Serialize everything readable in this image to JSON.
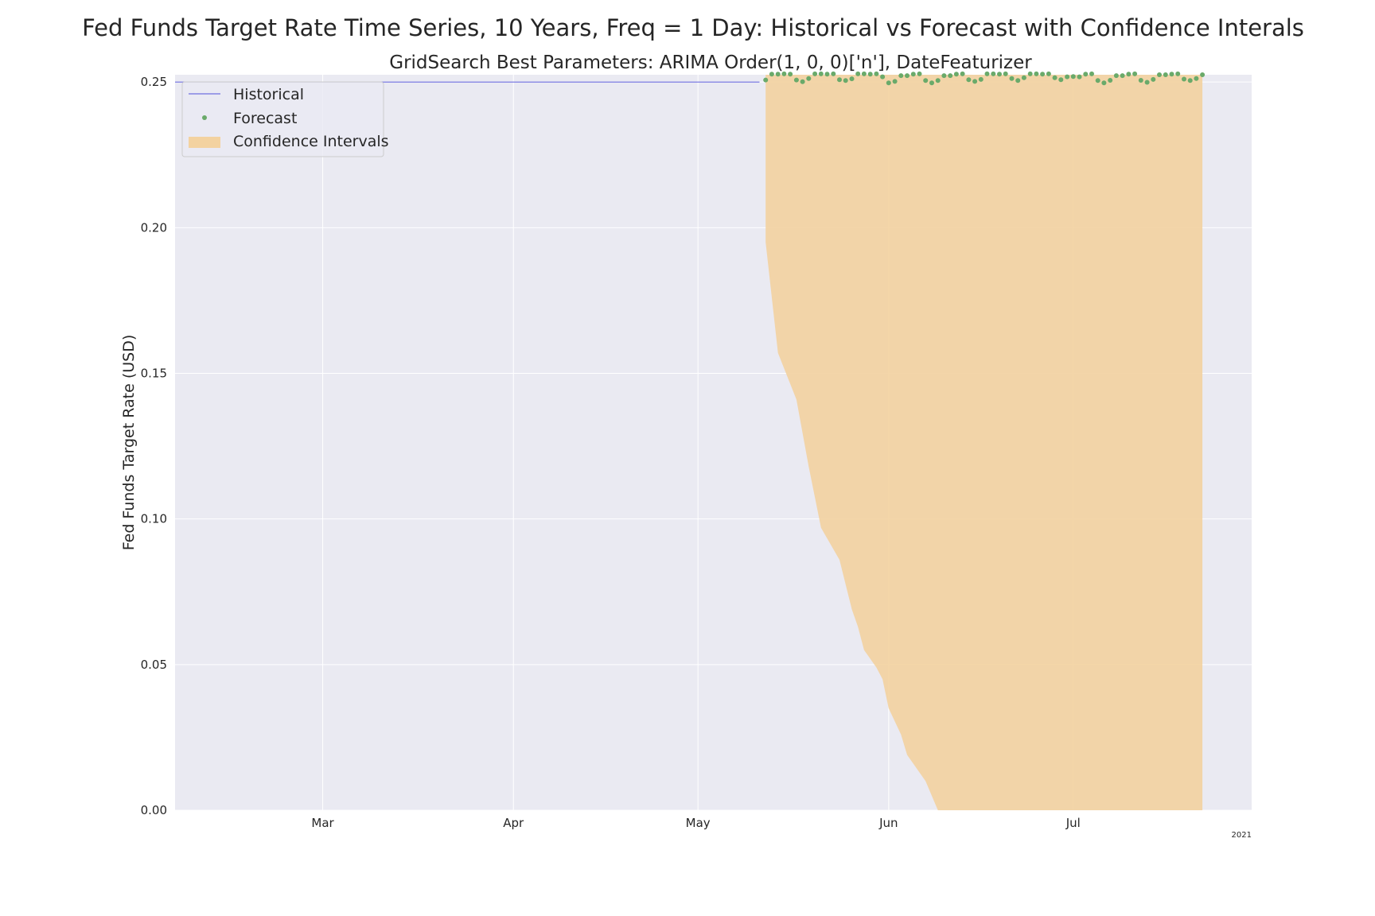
{
  "chart_data": {
    "type": "line",
    "title": "Fed Funds Target Rate Time Series, 10 Years, Freq = 1 Day: Historical vs Forecast with Confidence Interals",
    "subtitle": "GridSearch Best Parameters: ARIMA Order(1, 0, 0)['n'], DateFeaturizer",
    "xlabel": "",
    "ylabel": "Fed Funds Target Rate (USD)",
    "x_type": "date",
    "xlim": [
      "2021-02-05",
      "2021-07-30"
    ],
    "ylim": [
      0.0,
      0.2525
    ],
    "x_ticks": [
      {
        "date": "2021-03-01",
        "label": "Mar"
      },
      {
        "date": "2021-04-01",
        "label": "Apr"
      },
      {
        "date": "2021-05-01",
        "label": "May"
      },
      {
        "date": "2021-06-01",
        "label": "Jun"
      },
      {
        "date": "2021-07-01",
        "label": "Jul"
      }
    ],
    "x_offset_label": "2021",
    "y_ticks": [
      0.0,
      0.05,
      0.1,
      0.15,
      0.2,
      0.25
    ],
    "y_tick_labels": [
      "0.00",
      "0.05",
      "0.10",
      "0.15",
      "0.20",
      "0.25"
    ],
    "grid": true,
    "legend_position": "top-left",
    "legend": [
      "Historical",
      "Forecast",
      "Confidence Intervals"
    ],
    "colors": {
      "historical": "#6f6fe0",
      "forecast": "#6aaa6a",
      "confidence": "#f3d2a0",
      "plot_background": "#eaeaf2",
      "grid": "#ffffff"
    },
    "series": [
      {
        "name": "Historical",
        "style": "line",
        "x": [
          "2021-02-05",
          "2021-05-11"
        ],
        "y": [
          0.25,
          0.25
        ]
      },
      {
        "name": "Forecast",
        "style": "points",
        "x": [
          "2021-05-12",
          "2021-05-13",
          "2021-05-14",
          "2021-05-15",
          "2021-05-16",
          "2021-05-17",
          "2021-05-18",
          "2021-05-19",
          "2021-05-20",
          "2021-05-21",
          "2021-05-22",
          "2021-05-23",
          "2021-05-24",
          "2021-05-25",
          "2021-05-26",
          "2021-05-27",
          "2021-05-28",
          "2021-05-29",
          "2021-05-30",
          "2021-05-31",
          "2021-06-01",
          "2021-06-02",
          "2021-06-03",
          "2021-06-04",
          "2021-06-05",
          "2021-06-06",
          "2021-06-07",
          "2021-06-08",
          "2021-06-09",
          "2021-06-10",
          "2021-06-11",
          "2021-06-12",
          "2021-06-13",
          "2021-06-14",
          "2021-06-15",
          "2021-06-16",
          "2021-06-17",
          "2021-06-18",
          "2021-06-19",
          "2021-06-20",
          "2021-06-21",
          "2021-06-22",
          "2021-06-23",
          "2021-06-24",
          "2021-06-25",
          "2021-06-26",
          "2021-06-27",
          "2021-06-28",
          "2021-06-29",
          "2021-06-30",
          "2021-07-01",
          "2021-07-02",
          "2021-07-03",
          "2021-07-04",
          "2021-07-05",
          "2021-07-06",
          "2021-07-07",
          "2021-07-08",
          "2021-07-09",
          "2021-07-10",
          "2021-07-11",
          "2021-07-12",
          "2021-07-13",
          "2021-07-14",
          "2021-07-15",
          "2021-07-16",
          "2021-07-17",
          "2021-07-18",
          "2021-07-19",
          "2021-07-20",
          "2021-07-21",
          "2021-07-22"
        ],
        "y": [
          0.2507,
          0.2527,
          0.2527,
          0.2528,
          0.2527,
          0.2507,
          0.2501,
          0.2512,
          0.2528,
          0.2528,
          0.2527,
          0.2528,
          0.2508,
          0.2505,
          0.2511,
          0.2528,
          0.2528,
          0.2527,
          0.2528,
          0.2518,
          0.2497,
          0.2502,
          0.2522,
          0.2522,
          0.2527,
          0.2528,
          0.2505,
          0.2497,
          0.2505,
          0.2522,
          0.2522,
          0.2527,
          0.2528,
          0.2508,
          0.2502,
          0.2509,
          0.2528,
          0.2528,
          0.2527,
          0.2528,
          0.2512,
          0.2505,
          0.2515,
          0.2528,
          0.2528,
          0.2527,
          0.2528,
          0.2515,
          0.2508,
          0.2518,
          0.2519,
          0.2518,
          0.2527,
          0.2528,
          0.2505,
          0.2497,
          0.2506,
          0.2522,
          0.2522,
          0.2527,
          0.2528,
          0.2506,
          0.2499,
          0.2509,
          0.2525,
          0.2525,
          0.2527,
          0.2528,
          0.251,
          0.2505,
          0.2512,
          0.2525
        ]
      },
      {
        "name": "Confidence Intervals",
        "style": "band",
        "x": [
          "2021-05-12",
          "2021-05-14",
          "2021-05-17",
          "2021-05-19",
          "2021-05-21",
          "2021-05-24",
          "2021-05-26",
          "2021-05-27",
          "2021-05-28",
          "2021-05-30",
          "2021-05-31",
          "2021-06-01",
          "2021-06-03",
          "2021-06-04",
          "2021-06-07",
          "2021-06-09",
          "2021-07-22"
        ],
        "upper": [
          0.2525,
          0.2525,
          0.2525,
          0.2525,
          0.2525,
          0.2525,
          0.2525,
          0.2525,
          0.2525,
          0.2525,
          0.2525,
          0.2525,
          0.2525,
          0.2525,
          0.2525,
          0.2525,
          0.2525
        ],
        "lower": [
          0.195,
          0.157,
          0.141,
          0.118,
          0.097,
          0.086,
          0.069,
          0.063,
          0.055,
          0.049,
          0.045,
          0.035,
          0.026,
          0.019,
          0.01,
          0.0,
          0.0
        ]
      }
    ]
  }
}
